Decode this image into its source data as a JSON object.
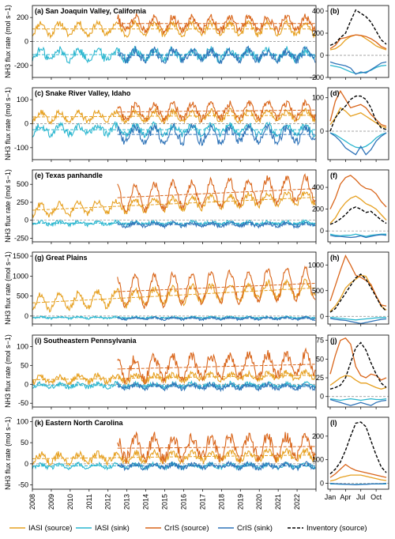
{
  "colors": {
    "iasi_source": "#E6A020",
    "iasi_sink": "#29B6CF",
    "cris_source": "#D9651A",
    "cris_sink": "#2E73B8",
    "inventory": "#000000"
  },
  "legend": {
    "items": [
      {
        "label": "IASI (source)",
        "color": "#E6A020",
        "dashed": false
      },
      {
        "label": "IASI (sink)",
        "color": "#29B6CF",
        "dashed": false
      },
      {
        "label": "CrIS (source)",
        "color": "#D9651A",
        "dashed": false
      },
      {
        "label": "CrIS (sink)",
        "color": "#2E73B8",
        "dashed": false
      },
      {
        "label": "Inventory (source)",
        "color": "#000000",
        "dashed": true
      }
    ]
  },
  "x_axis": {
    "year_ticks": [
      "2008",
      "2009",
      "2010",
      "2011",
      "2012",
      "2013",
      "2014",
      "2015",
      "2016",
      "2017",
      "2018",
      "2019",
      "2020",
      "2021",
      "2022"
    ],
    "month_ticks": [
      "Jan",
      "Apr",
      "Jul",
      "Oct"
    ]
  },
  "chart_data": [
    {
      "type": "line",
      "title": "(a) San Joaquin Valley, California",
      "ylabel": "NH3 flux rate (mol s−1)",
      "ylim": [
        -300,
        300
      ],
      "yticks": [
        -200,
        0,
        200
      ],
      "x_range": [
        2008,
        2023
      ],
      "series": [
        {
          "key": "iasi_source",
          "start": 2008.0,
          "mean": 105,
          "trend": 0,
          "amplitude": 50,
          "noise": 25,
          "trend_line": true
        },
        {
          "key": "iasi_sink",
          "start": 2008.0,
          "mean": -110,
          "trend": 0,
          "amplitude": 40,
          "noise": 35,
          "trend_line": true
        },
        {
          "key": "cris_source",
          "start": 2012.5,
          "mean": 150,
          "trend": 0,
          "amplitude": 55,
          "noise": 30,
          "trend_line": true
        },
        {
          "key": "cris_sink",
          "start": 2012.5,
          "mean": -115,
          "trend": 0,
          "amplitude": 40,
          "noise": 35,
          "trend_line": true
        }
      ]
    },
    {
      "type": "line",
      "title": "(b)",
      "ylim": [
        -200,
        450
      ],
      "yticks": [
        -200,
        0,
        200,
        400
      ],
      "x": [
        1,
        2,
        3,
        4,
        5,
        6,
        7,
        8,
        9,
        10,
        11,
        12
      ],
      "series": [
        {
          "key": "iasi_source",
          "values": [
            50,
            60,
            90,
            140,
            170,
            185,
            180,
            150,
            120,
            85,
            65,
            50
          ]
        },
        {
          "key": "iasi_sink",
          "values": [
            -90,
            -100,
            -110,
            -130,
            -150,
            -165,
            -160,
            -150,
            -135,
            -110,
            -95,
            -90
          ]
        },
        {
          "key": "cris_source",
          "values": [
            60,
            90,
            150,
            160,
            175,
            185,
            180,
            170,
            150,
            120,
            80,
            60
          ]
        },
        {
          "key": "cris_sink",
          "values": [
            -60,
            -75,
            -85,
            -95,
            -115,
            -170,
            -150,
            -160,
            -130,
            -100,
            -70,
            -60
          ]
        },
        {
          "key": "inventory",
          "values": [
            90,
            110,
            160,
            200,
            310,
            410,
            380,
            350,
            300,
            220,
            140,
            100
          ]
        }
      ]
    },
    {
      "type": "line",
      "title": "(c) Snake River Valley, Idaho",
      "ylabel": "NH3 flux rate (mol s−1)",
      "ylim": [
        -150,
        150
      ],
      "yticks": [
        -100,
        0,
        100
      ],
      "x_range": [
        2008,
        2023
      ],
      "series": [
        {
          "key": "iasi_source",
          "start": 2008.0,
          "mean": 28,
          "trend": 0.5,
          "amplitude": 20,
          "noise": 12,
          "trend_line": true
        },
        {
          "key": "iasi_sink",
          "start": 2008.0,
          "mean": -25,
          "trend": 0,
          "amplitude": 18,
          "noise": 15,
          "trend_line": true
        },
        {
          "key": "cris_source",
          "start": 2012.5,
          "mean": 45,
          "trend": 0.8,
          "amplitude": 30,
          "noise": 15,
          "trend_line": true
        },
        {
          "key": "cris_sink",
          "start": 2012.5,
          "mean": -45,
          "trend": 0,
          "amplitude": 30,
          "noise": 18,
          "trend_line": true
        }
      ]
    },
    {
      "type": "line",
      "title": "(d)",
      "ylim": [
        -85,
        130
      ],
      "yticks": [
        0,
        100
      ],
      "x": [
        1,
        2,
        3,
        4,
        5,
        6,
        7,
        8,
        9,
        10,
        11,
        12
      ],
      "series": [
        {
          "key": "iasi_source",
          "values": [
            20,
            40,
            70,
            60,
            45,
            50,
            55,
            45,
            35,
            25,
            15,
            10
          ]
        },
        {
          "key": "iasi_sink",
          "values": [
            -5,
            -10,
            -20,
            -30,
            -40,
            -48,
            -50,
            -45,
            -35,
            -20,
            -10,
            -5
          ]
        },
        {
          "key": "cris_source",
          "values": [
            30,
            90,
            120,
            95,
            70,
            75,
            80,
            70,
            50,
            35,
            20,
            15
          ]
        },
        {
          "key": "cris_sink",
          "values": [
            -5,
            -15,
            -30,
            -50,
            -60,
            -70,
            -45,
            -70,
            -55,
            -30,
            -15,
            -5
          ]
        },
        {
          "key": "inventory",
          "values": [
            0,
            40,
            60,
            75,
            95,
            105,
            105,
            95,
            70,
            30,
            10,
            5
          ]
        }
      ]
    },
    {
      "type": "line",
      "title": "(e) Texas panhandle",
      "ylabel": "NH3 flux rate (mol s−1)",
      "ylim": [
        -300,
        700
      ],
      "yticks": [
        -250,
        0,
        250,
        500
      ],
      "x_range": [
        2008,
        2023
      ],
      "series": [
        {
          "key": "iasi_source",
          "start": 2008.0,
          "mean": 140,
          "trend": 12,
          "amplitude": 80,
          "noise": 40,
          "trend_line": true
        },
        {
          "key": "iasi_sink",
          "start": 2008.0,
          "mean": -40,
          "trend": 0,
          "amplitude": 20,
          "noise": 25,
          "trend_line": true
        },
        {
          "key": "cris_source",
          "start": 2012.5,
          "mean": 260,
          "trend": 12,
          "amplitude": 170,
          "noise": 50,
          "trend_line": true
        },
        {
          "key": "cris_sink",
          "start": 2012.5,
          "mean": -60,
          "trend": 0,
          "amplitude": 25,
          "noise": 25,
          "trend_line": true
        }
      ]
    },
    {
      "type": "line",
      "title": "(f)",
      "ylim": [
        -100,
        560
      ],
      "yticks": [
        0,
        200,
        400
      ],
      "x": [
        1,
        2,
        3,
        4,
        5,
        6,
        7,
        8,
        9,
        10,
        11,
        12
      ],
      "series": [
        {
          "key": "iasi_source",
          "values": [
            70,
            120,
            200,
            260,
            300,
            320,
            290,
            250,
            230,
            200,
            150,
            100
          ]
        },
        {
          "key": "iasi_sink",
          "values": [
            -30,
            -40,
            -45,
            -40,
            -40,
            -30,
            -40,
            -50,
            -40,
            -35,
            -30,
            -30
          ]
        },
        {
          "key": "cris_source",
          "values": [
            200,
            300,
            430,
            490,
            510,
            470,
            420,
            390,
            380,
            340,
            270,
            220
          ]
        },
        {
          "key": "cris_sink",
          "values": [
            -40,
            -50,
            -50,
            -55,
            -60,
            -55,
            -45,
            -60,
            -50,
            -40,
            -35,
            -40
          ]
        },
        {
          "key": "inventory",
          "values": [
            60,
            80,
            110,
            150,
            200,
            220,
            200,
            170,
            180,
            140,
            100,
            70
          ]
        }
      ]
    },
    {
      "type": "line",
      "title": "(g) Great Plains",
      "ylabel": "NH3 flux rate (mol s−1)",
      "ylim": [
        -200,
        1600
      ],
      "yticks": [
        0,
        500,
        1000,
        1500
      ],
      "x_range": [
        2008,
        2023
      ],
      "series": [
        {
          "key": "iasi_source",
          "start": 2008.0,
          "mean": 330,
          "trend": 25,
          "amplitude": 200,
          "noise": 80,
          "trend_line": true
        },
        {
          "key": "iasi_sink",
          "start": 2008.0,
          "mean": -40,
          "trend": 0,
          "amplitude": 20,
          "noise": 25,
          "trend_line": true
        },
        {
          "key": "cris_source",
          "start": 2012.5,
          "mean": 520,
          "trend": 20,
          "amplitude": 380,
          "noise": 80,
          "trend_line": true
        },
        {
          "key": "cris_sink",
          "start": 2012.5,
          "mean": -60,
          "trend": 0,
          "amplitude": 30,
          "noise": 25,
          "trend_line": true
        }
      ]
    },
    {
      "type": "line",
      "title": "(h)",
      "ylim": [
        -150,
        1250
      ],
      "yticks": [
        0,
        500,
        1000
      ],
      "x": [
        1,
        2,
        3,
        4,
        5,
        6,
        7,
        8,
        9,
        10,
        11,
        12
      ],
      "series": [
        {
          "key": "iasi_source",
          "values": [
            100,
            200,
            350,
            550,
            650,
            720,
            800,
            780,
            600,
            400,
            200,
            120
          ]
        },
        {
          "key": "iasi_sink",
          "values": [
            -20,
            -30,
            -40,
            -50,
            -60,
            -70,
            -60,
            -50,
            -40,
            -30,
            -25,
            -20
          ]
        },
        {
          "key": "cris_source",
          "values": [
            300,
            600,
            900,
            1180,
            1000,
            800,
            760,
            700,
            620,
            400,
            220,
            200
          ]
        },
        {
          "key": "cris_sink",
          "values": [
            -40,
            -60,
            -70,
            -80,
            -100,
            -120,
            -140,
            -120,
            -100,
            -80,
            -60,
            -50
          ]
        },
        {
          "key": "inventory",
          "values": [
            80,
            150,
            300,
            450,
            600,
            750,
            820,
            720,
            560,
            380,
            200,
            100
          ]
        }
      ]
    },
    {
      "type": "line",
      "title": "(i) Southeastern Pennsylvania",
      "ylabel": "NH3 flux rate (mol s−1)",
      "ylim": [
        -60,
        130
      ],
      "yticks": [
        -50,
        0,
        50,
        100
      ],
      "x_range": [
        2008,
        2023
      ],
      "series": [
        {
          "key": "iasi_source",
          "start": 2008.0,
          "mean": 12,
          "trend": 0.8,
          "amplitude": 8,
          "noise": 8,
          "trend_line": true
        },
        {
          "key": "iasi_sink",
          "start": 2008.0,
          "mean": -3,
          "trend": 0,
          "amplitude": 5,
          "noise": 6,
          "trend_line": true
        },
        {
          "key": "cris_source",
          "start": 2012.5,
          "mean": 35,
          "trend": 1.2,
          "amplitude": 28,
          "noise": 14,
          "trend_line": true
        },
        {
          "key": "cris_sink",
          "start": 2012.5,
          "mean": -6,
          "trend": 0,
          "amplitude": 6,
          "noise": 6,
          "trend_line": true
        }
      ]
    },
    {
      "type": "line",
      "title": "(j)",
      "ylim": [
        -14,
        82
      ],
      "yticks": [
        0,
        25,
        50,
        75
      ],
      "x": [
        1,
        2,
        3,
        4,
        5,
        6,
        7,
        8,
        9,
        10,
        11,
        12
      ],
      "series": [
        {
          "key": "iasi_source",
          "values": [
            15,
            20,
            25,
            28,
            27,
            22,
            18,
            18,
            15,
            12,
            10,
            12
          ]
        },
        {
          "key": "iasi_sink",
          "values": [
            -3,
            -4,
            -5,
            -4,
            -3,
            -4,
            -5,
            -4,
            -3,
            -4,
            -4,
            -3
          ]
        },
        {
          "key": "cris_source",
          "values": [
            30,
            55,
            75,
            78,
            70,
            40,
            28,
            25,
            30,
            28,
            22,
            25
          ]
        },
        {
          "key": "cris_sink",
          "values": [
            -4,
            -6,
            -8,
            -10,
            -12,
            -10,
            -8,
            -10,
            -12,
            -8,
            -6,
            -5
          ]
        },
        {
          "key": "inventory",
          "values": [
            10,
            12,
            15,
            25,
            45,
            65,
            72,
            62,
            45,
            30,
            18,
            12
          ]
        }
      ]
    },
    {
      "type": "line",
      "title": "(k) Eastern North Carolina",
      "ylabel": "NH3 flux rate (mol s−1)",
      "ylim": [
        -60,
        110
      ],
      "yticks": [
        -50,
        0,
        50,
        100
      ],
      "x_range": [
        2008,
        2023
      ],
      "series": [
        {
          "key": "iasi_source",
          "start": 2008.0,
          "mean": 12,
          "trend": 0.6,
          "amplitude": 10,
          "noise": 8,
          "trend_line": true
        },
        {
          "key": "iasi_sink",
          "start": 2008.0,
          "mean": -5,
          "trend": 0,
          "amplitude": 4,
          "noise": 5,
          "trend_line": true
        },
        {
          "key": "cris_source",
          "start": 2012.5,
          "mean": 35,
          "trend": 0.4,
          "amplitude": 25,
          "noise": 14,
          "trend_line": true
        },
        {
          "key": "cris_sink",
          "start": 2012.5,
          "mean": -5,
          "trend": 0,
          "amplitude": 5,
          "noise": 6,
          "trend_line": true
        }
      ]
    },
    {
      "type": "line",
      "title": "(l)",
      "ylim": [
        -25,
        280
      ],
      "yticks": [
        0,
        100,
        200
      ],
      "x": [
        1,
        2,
        3,
        4,
        5,
        6,
        7,
        8,
        9,
        10,
        11,
        12
      ],
      "series": [
        {
          "key": "iasi_source",
          "values": [
            10,
            15,
            25,
            30,
            35,
            35,
            35,
            30,
            25,
            20,
            15,
            12
          ]
        },
        {
          "key": "iasi_sink",
          "values": [
            -3,
            -3,
            -4,
            -4,
            -5,
            -5,
            -4,
            -4,
            -3,
            -3,
            -3,
            -3
          ]
        },
        {
          "key": "cris_source",
          "values": [
            25,
            40,
            60,
            80,
            65,
            55,
            50,
            45,
            40,
            35,
            30,
            25
          ]
        },
        {
          "key": "cris_sink",
          "values": [
            0,
            -2,
            -3,
            -4,
            -5,
            -6,
            -5,
            -4,
            -3,
            -2,
            -2,
            0
          ]
        },
        {
          "key": "inventory",
          "values": [
            40,
            60,
            90,
            140,
            200,
            255,
            260,
            240,
            180,
            120,
            70,
            45
          ]
        }
      ]
    }
  ]
}
